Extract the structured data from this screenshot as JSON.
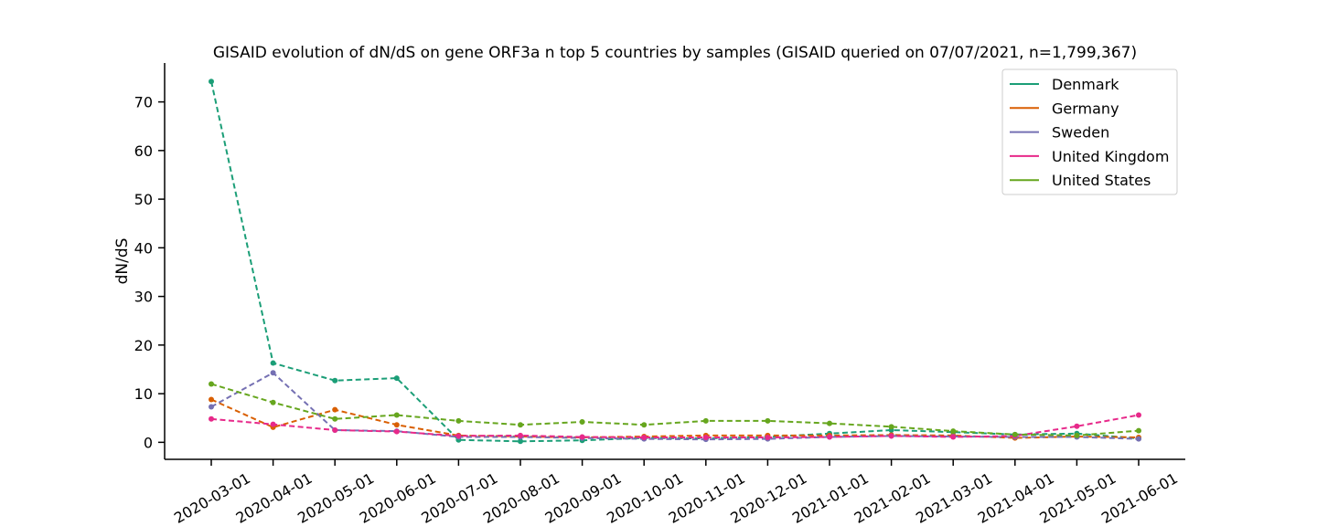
{
  "chart_data": {
    "type": "line",
    "title": "GISAID evolution of dN/dS on gene ORF3a n top 5 countries by samples (GISAID queried on 07/07/2021, n=1,799,367)",
    "xlabel": "",
    "ylabel": "dN/dS",
    "categories": [
      "2020-03-01",
      "2020-04-01",
      "2020-05-01",
      "2020-06-01",
      "2020-07-01",
      "2020-08-01",
      "2020-09-01",
      "2020-10-01",
      "2020-11-01",
      "2020-12-01",
      "2021-01-01",
      "2021-02-01",
      "2021-03-01",
      "2021-04-01",
      "2021-05-01",
      "2021-06-01"
    ],
    "ylim": [
      -3.5,
      78
    ],
    "yticks": [
      0,
      10,
      20,
      30,
      40,
      50,
      60,
      70
    ],
    "grid": false,
    "legend_position": "top-right",
    "series": [
      {
        "name": "Denmark",
        "color": "#1b9e77",
        "values": [
          74.2,
          16.3,
          12.7,
          13.2,
          0.5,
          0.2,
          0.4,
          0.9,
          0.8,
          1.1,
          1.8,
          2.5,
          2.1,
          1.6,
          1.8,
          0.8
        ]
      },
      {
        "name": "Germany",
        "color": "#d95f02",
        "values": [
          8.8,
          3.1,
          6.7,
          3.6,
          1.4,
          1.2,
          1.0,
          1.2,
          1.4,
          1.4,
          1.4,
          1.5,
          1.4,
          0.9,
          1.2,
          1.0
        ]
      },
      {
        "name": "Sweden",
        "color": "#7570b3",
        "values": [
          7.3,
          14.3,
          2.5,
          2.3,
          1.1,
          1.1,
          0.9,
          0.7,
          0.6,
          0.7,
          1.1,
          1.3,
          1.2,
          1.1,
          1.1,
          0.7
        ]
      },
      {
        "name": "United Kingdom",
        "color": "#e7298a",
        "values": [
          4.8,
          3.7,
          2.5,
          2.2,
          1.3,
          1.4,
          1.1,
          1.0,
          1.0,
          1.0,
          1.1,
          1.3,
          1.1,
          1.3,
          3.3,
          5.6
        ]
      },
      {
        "name": "United States",
        "color": "#66a61e",
        "values": [
          12.0,
          8.2,
          4.8,
          5.6,
          4.4,
          3.6,
          4.2,
          3.6,
          4.4,
          4.4,
          3.9,
          3.2,
          2.3,
          1.6,
          1.4,
          2.4
        ]
      }
    ]
  }
}
